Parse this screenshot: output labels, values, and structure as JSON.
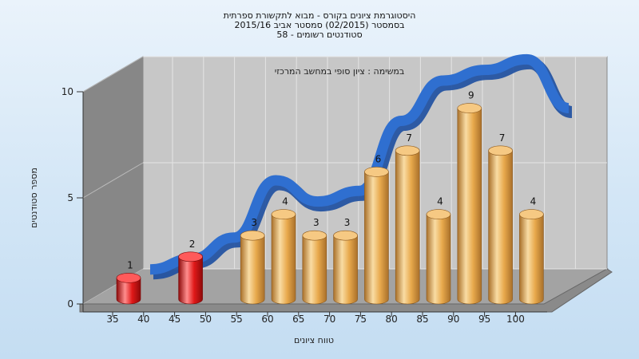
{
  "chart_data": {
    "type": "bar",
    "title_lines": [
      "היסטוגרמת ציונים בקורס - מבוא לתקשורת ספרתית",
      "בסמסטר  (02/2015)  סמסטר אביב 2015/16",
      "סטודנטים רשומים - 58"
    ],
    "subtitle": "במשימה : ציון סופי במחשב המרכזי",
    "xlabel": "טווח ציונים",
    "ylabel": "מספר סטודנטים",
    "x_ticks": [
      "35",
      "40",
      "45",
      "50",
      "55",
      "60",
      "65",
      "70",
      "75",
      "80",
      "85",
      "90",
      "95",
      "100"
    ],
    "y_ticks": [
      "0",
      "5",
      "10"
    ],
    "ylim": [
      0,
      10
    ],
    "categories": [
      "35",
      "45",
      "55",
      "60",
      "65",
      "70",
      "75",
      "80",
      "85",
      "90",
      "95",
      "100"
    ],
    "values": [
      1,
      2,
      3,
      4,
      3,
      3,
      6,
      7,
      4,
      9,
      7,
      4
    ],
    "data_labels": [
      "1",
      "2",
      "3",
      "4",
      "3",
      "3",
      "6",
      "7",
      "4",
      "9",
      "7",
      "4"
    ],
    "failing_categories": [
      "35",
      "45"
    ],
    "curve": [
      0.5,
      1.0,
      2.0,
      4.7,
      3.7,
      4.2,
      7.5,
      9.4,
      9.9,
      10.4,
      8.1
    ],
    "grid": true,
    "colors": {
      "bar_fail": "#e01818",
      "bar_pass": "#e8a94c",
      "curve": "#2f6fd0",
      "back_wall": "#c7c7c7",
      "side_wall": "#878787",
      "floor": "#a3a3a3",
      "grid": "#e4e4e4"
    }
  }
}
